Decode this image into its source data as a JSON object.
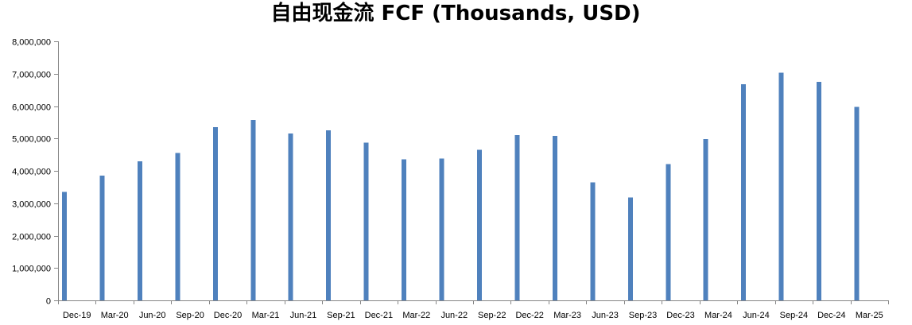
{
  "chart_data": {
    "type": "bar",
    "title": "自由现金流 FCF (Thousands, USD)",
    "xlabel": "",
    "ylabel": "",
    "categories": [
      "Dec-19",
      "Mar-20",
      "Jun-20",
      "Sep-20",
      "Dec-20",
      "Mar-21",
      "Jun-21",
      "Sep-21",
      "Dec-21",
      "Mar-22",
      "Jun-22",
      "Sep-22",
      "Dec-22",
      "Mar-23",
      "Jun-23",
      "Sep-23",
      "Dec-23",
      "Mar-24",
      "Jun-24",
      "Sep-24",
      "Dec-24",
      "Mar-25"
    ],
    "values": [
      3350000,
      3850000,
      4300000,
      4550000,
      5350000,
      5570000,
      5150000,
      5250000,
      4870000,
      4360000,
      4380000,
      4650000,
      5100000,
      5080000,
      3650000,
      3180000,
      4210000,
      4980000,
      6680000,
      7030000,
      6750000,
      5970000
    ],
    "ylim": [
      0,
      8000000
    ],
    "yticks": [
      0,
      1000000,
      2000000,
      3000000,
      4000000,
      5000000,
      6000000,
      7000000,
      8000000
    ],
    "ytick_labels": [
      "0",
      "1,000,000",
      "2,000,000",
      "3,000,000",
      "4,000,000",
      "5,000,000",
      "6,000,000",
      "7,000,000",
      "8,000,000"
    ],
    "grid": false,
    "legend": "none",
    "bar_color": "#4F81BD"
  }
}
